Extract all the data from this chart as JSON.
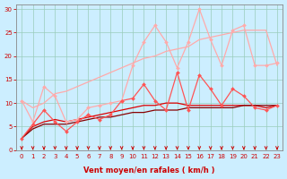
{
  "xlabel": "Vent moyen/en rafales ( km/h )",
  "bg_color": "#cceeff",
  "grid_color": "#99ccbb",
  "x_ticks": [
    0,
    1,
    2,
    3,
    4,
    5,
    6,
    7,
    8,
    9,
    10,
    11,
    12,
    13,
    14,
    15,
    16,
    17,
    18,
    19,
    20,
    21,
    22,
    23
  ],
  "y_ticks": [
    0,
    5,
    10,
    15,
    20,
    25,
    30
  ],
  "ylim": [
    0,
    31
  ],
  "xlim": [
    -0.5,
    23.5
  ],
  "series": [
    {
      "color": "#ffaaaa",
      "linewidth": 0.9,
      "marker": "D",
      "markersize": 2.0,
      "y": [
        10.5,
        6.0,
        13.5,
        11.5,
        6.0,
        6.5,
        9.0,
        9.5,
        10.0,
        10.5,
        18.0,
        23.0,
        26.5,
        23.0,
        17.5,
        23.0,
        30.0,
        23.5,
        18.0,
        25.5,
        26.5,
        18.0,
        18.0,
        18.5
      ]
    },
    {
      "color": "#ffaaaa",
      "linewidth": 0.9,
      "marker": null,
      "y": [
        10.5,
        9.0,
        10.0,
        12.0,
        12.5,
        13.5,
        14.5,
        15.5,
        16.5,
        17.5,
        18.5,
        19.5,
        20.0,
        21.0,
        21.5,
        22.0,
        23.5,
        24.0,
        24.5,
        25.0,
        25.5,
        25.5,
        25.5,
        18.0
      ]
    },
    {
      "color": "#ff5555",
      "linewidth": 0.9,
      "marker": "D",
      "markersize": 2.0,
      "y": [
        2.5,
        5.5,
        8.5,
        6.0,
        4.0,
        6.0,
        7.5,
        6.5,
        7.5,
        10.5,
        11.0,
        14.0,
        10.5,
        8.5,
        16.5,
        8.5,
        16.0,
        13.0,
        9.5,
        13.0,
        11.5,
        9.0,
        8.5,
        9.5
      ]
    },
    {
      "color": "#dd0000",
      "linewidth": 0.9,
      "marker": null,
      "y": [
        2.5,
        5.0,
        6.0,
        6.5,
        6.0,
        6.5,
        7.0,
        7.5,
        8.0,
        8.5,
        9.0,
        9.5,
        9.5,
        10.0,
        10.0,
        9.5,
        9.5,
        9.5,
        9.5,
        9.5,
        9.5,
        9.5,
        9.0,
        9.5
      ]
    },
    {
      "color": "#880000",
      "linewidth": 0.9,
      "marker": null,
      "y": [
        2.5,
        4.5,
        5.5,
        5.5,
        5.5,
        6.0,
        6.5,
        7.0,
        7.0,
        7.5,
        8.0,
        8.0,
        8.5,
        8.5,
        8.5,
        9.0,
        9.0,
        9.0,
        9.0,
        9.0,
        9.5,
        9.5,
        9.5,
        9.5
      ]
    }
  ],
  "arrow_color": "#cc0000",
  "tick_color": "#cc0000",
  "spine_color": "#888888"
}
